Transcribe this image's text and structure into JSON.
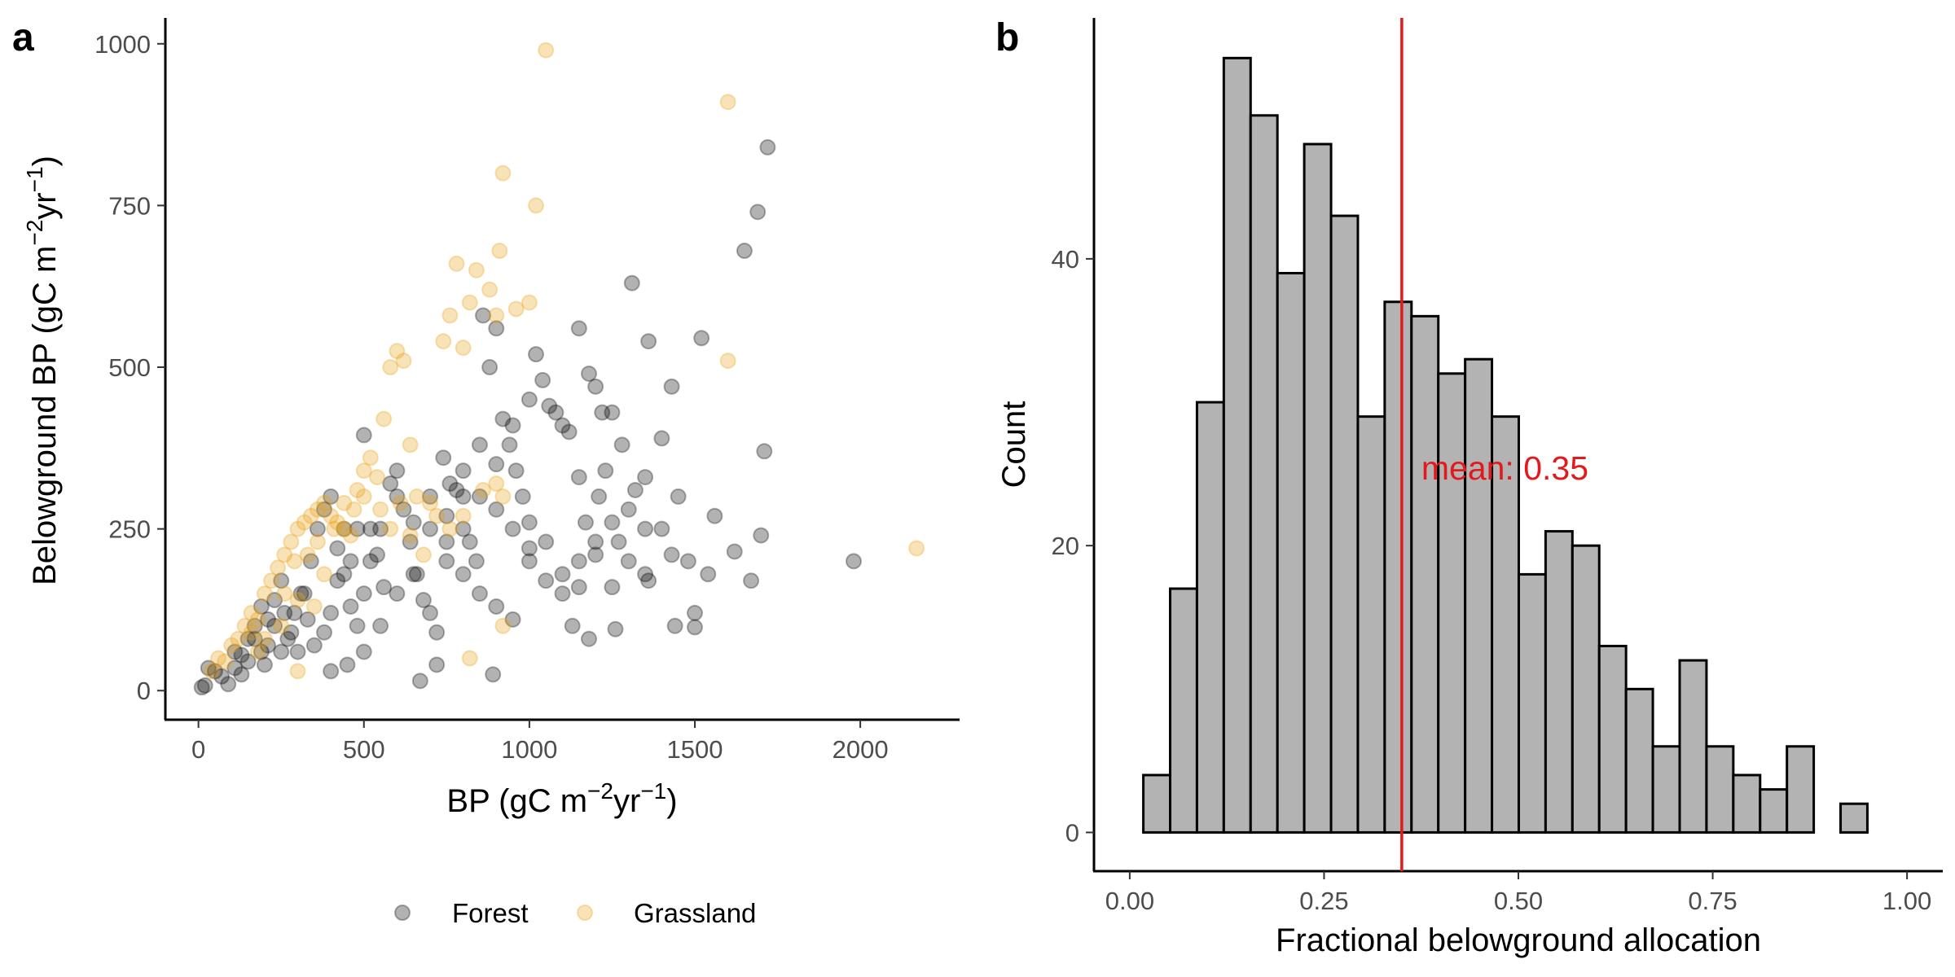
{
  "chart_data": [
    {
      "type": "scatter",
      "panel": "a",
      "xlabel": {
        "main": "BP (gC m",
        "sup1": "−2",
        "mid": "yr",
        "sup2": "−1",
        "end": ")"
      },
      "ylabel": {
        "main": "Belowground BP (gC m",
        "sup1": "−2",
        "mid": "yr",
        "sup2": "−1",
        "end": ")"
      },
      "xlim": [
        -100,
        2300
      ],
      "ylim": [
        -45,
        1040
      ],
      "xticks": [
        0,
        500,
        1000,
        1500,
        2000
      ],
      "yticks": [
        0,
        250,
        500,
        750,
        1000
      ],
      "legend_position": "bottom",
      "series": [
        {
          "name": "Forest",
          "color": "#000000",
          "alpha": 0.3,
          "points": [
            [
              10,
              5
            ],
            [
              20,
              8
            ],
            [
              30,
              35
            ],
            [
              50,
              30
            ],
            [
              70,
              22
            ],
            [
              90,
              10
            ],
            [
              110,
              35
            ],
            [
              130,
              55
            ],
            [
              150,
              80
            ],
            [
              170,
              100
            ],
            [
              190,
              60
            ],
            [
              200,
              40
            ],
            [
              210,
              110
            ],
            [
              230,
              140
            ],
            [
              250,
              170
            ],
            [
              260,
              120
            ],
            [
              280,
              90
            ],
            [
              300,
              60
            ],
            [
              320,
              150
            ],
            [
              340,
              200
            ],
            [
              360,
              250
            ],
            [
              380,
              280
            ],
            [
              400,
              300
            ],
            [
              420,
              220
            ],
            [
              440,
              180
            ],
            [
              460,
              130
            ],
            [
              480,
              100
            ],
            [
              500,
              395
            ],
            [
              520,
              250
            ],
            [
              540,
              210
            ],
            [
              560,
              160
            ],
            [
              580,
              320
            ],
            [
              600,
              340
            ],
            [
              620,
              280
            ],
            [
              640,
              230
            ],
            [
              660,
              180
            ],
            [
              680,
              140
            ],
            [
              700,
              120
            ],
            [
              720,
              90
            ],
            [
              740,
              360
            ],
            [
              760,
              320
            ],
            [
              780,
              310
            ],
            [
              800,
              300
            ],
            [
              820,
              230
            ],
            [
              840,
              200
            ],
            [
              860,
              580
            ],
            [
              880,
              500
            ],
            [
              900,
              560
            ],
            [
              920,
              420
            ],
            [
              940,
              380
            ],
            [
              960,
              340
            ],
            [
              980,
              300
            ],
            [
              1000,
              260
            ],
            [
              1020,
              520
            ],
            [
              1040,
              480
            ],
            [
              1060,
              440
            ],
            [
              1080,
              430
            ],
            [
              1100,
              410
            ],
            [
              1120,
              400
            ],
            [
              1150,
              560
            ],
            [
              1180,
              490
            ],
            [
              1200,
              470
            ],
            [
              1220,
              430
            ],
            [
              1250,
              430
            ],
            [
              1280,
              380
            ],
            [
              1310,
              630
            ],
            [
              1360,
              540
            ],
            [
              1400,
              390
            ],
            [
              1430,
              470
            ],
            [
              1450,
              300
            ],
            [
              1480,
              200
            ],
            [
              1500,
              120
            ],
            [
              1520,
              545
            ],
            [
              1560,
              270
            ],
            [
              1620,
              215
            ],
            [
              1650,
              680
            ],
            [
              1670,
              170
            ],
            [
              1690,
              740
            ],
            [
              1700,
              240
            ],
            [
              1710,
              370
            ],
            [
              1720,
              840
            ],
            [
              1980,
              200
            ],
            [
              890,
              25
            ],
            [
              670,
              15
            ],
            [
              720,
              40
            ],
            [
              1180,
              80
            ],
            [
              1130,
              100
            ],
            [
              1260,
              95
            ],
            [
              1440,
              100
            ],
            [
              1500,
              98
            ],
            [
              1400,
              250
            ],
            [
              1320,
              310
            ],
            [
              600,
              300
            ],
            [
              550,
              250
            ],
            [
              520,
              200
            ],
            [
              500,
              150
            ],
            [
              480,
              250
            ],
            [
              460,
              200
            ],
            [
              440,
              250
            ],
            [
              420,
              170
            ],
            [
              400,
              120
            ],
            [
              380,
              90
            ],
            [
              350,
              70
            ],
            [
              330,
              110
            ],
            [
              310,
              150
            ],
            [
              290,
              120
            ],
            [
              270,
              80
            ],
            [
              250,
              60
            ],
            [
              230,
              100
            ],
            [
              210,
              70
            ],
            [
              190,
              130
            ],
            [
              170,
              80
            ],
            [
              150,
              45
            ],
            [
              130,
              25
            ],
            [
              110,
              60
            ],
            [
              700,
              250
            ],
            [
              750,
              230
            ],
            [
              800,
              180
            ],
            [
              850,
              150
            ],
            [
              900,
              130
            ],
            [
              950,
              110
            ],
            [
              1000,
              220
            ],
            [
              1050,
              230
            ],
            [
              1100,
              180
            ],
            [
              1150,
              160
            ],
            [
              1200,
              230
            ],
            [
              1250,
              260
            ],
            [
              1300,
              280
            ],
            [
              1350,
              330
            ],
            [
              1000,
              450
            ],
            [
              950,
              410
            ],
            [
              900,
              350
            ],
            [
              850,
              300
            ],
            [
              800,
              250
            ],
            [
              750,
              200
            ],
            [
              650,
              180
            ],
            [
              600,
              150
            ],
            [
              550,
              100
            ],
            [
              500,
              60
            ],
            [
              450,
              40
            ],
            [
              400,
              30
            ],
            [
              650,
              260
            ],
            [
              700,
              300
            ],
            [
              750,
              270
            ],
            [
              800,
              340
            ],
            [
              850,
              380
            ],
            [
              900,
              280
            ],
            [
              950,
              250
            ],
            [
              1000,
              200
            ],
            [
              1050,
              170
            ],
            [
              1100,
              150
            ],
            [
              1150,
              200
            ],
            [
              1200,
              210
            ],
            [
              1250,
              160
            ],
            [
              1300,
              200
            ],
            [
              1350,
              180
            ],
            [
              1430,
              210
            ],
            [
              1540,
              180
            ],
            [
              1150,
              330
            ],
            [
              1170,
              260
            ],
            [
              1210,
              300
            ],
            [
              1230,
              340
            ],
            [
              1270,
              230
            ],
            [
              1350,
              250
            ],
            [
              1360,
              170
            ]
          ]
        },
        {
          "name": "Grassland",
          "color": "#e8a317",
          "alpha": 0.3,
          "points": [
            [
              40,
              30
            ],
            [
              60,
              50
            ],
            [
              80,
              45
            ],
            [
              100,
              70
            ],
            [
              120,
              80
            ],
            [
              140,
              100
            ],
            [
              160,
              120
            ],
            [
              180,
              110
            ],
            [
              200,
              150
            ],
            [
              220,
              170
            ],
            [
              240,
              190
            ],
            [
              260,
              210
            ],
            [
              280,
              230
            ],
            [
              300,
              250
            ],
            [
              320,
              260
            ],
            [
              340,
              270
            ],
            [
              360,
              280
            ],
            [
              380,
              290
            ],
            [
              400,
              270
            ],
            [
              420,
              260
            ],
            [
              440,
              250
            ],
            [
              460,
              240
            ],
            [
              480,
              310
            ],
            [
              500,
              340
            ],
            [
              520,
              360
            ],
            [
              540,
              330
            ],
            [
              560,
              420
            ],
            [
              580,
              500
            ],
            [
              600,
              525
            ],
            [
              620,
              510
            ],
            [
              640,
              380
            ],
            [
              660,
              300
            ],
            [
              700,
              290
            ],
            [
              740,
              540
            ],
            [
              760,
              580
            ],
            [
              780,
              660
            ],
            [
              800,
              530
            ],
            [
              820,
              600
            ],
            [
              840,
              650
            ],
            [
              880,
              620
            ],
            [
              900,
              580
            ],
            [
              910,
              680
            ],
            [
              920,
              800
            ],
            [
              960,
              590
            ],
            [
              1000,
              600
            ],
            [
              1020,
              750
            ],
            [
              1050,
              990
            ],
            [
              1600,
              910
            ],
            [
              1600,
              510
            ],
            [
              2170,
              220
            ],
            [
              900,
              320
            ],
            [
              920,
              100
            ],
            [
              820,
              50
            ],
            [
              300,
              30
            ],
            [
              350,
              130
            ],
            [
              380,
              180
            ],
            [
              300,
              140
            ],
            [
              250,
              100
            ],
            [
              200,
              80
            ],
            [
              180,
              60
            ],
            [
              160,
              90
            ],
            [
              260,
              150
            ],
            [
              290,
              200
            ],
            [
              330,
              210
            ],
            [
              360,
              230
            ],
            [
              410,
              250
            ],
            [
              440,
              290
            ],
            [
              470,
              280
            ],
            [
              500,
              300
            ],
            [
              550,
              280
            ],
            [
              580,
              250
            ],
            [
              610,
              290
            ],
            [
              640,
              240
            ],
            [
              680,
              210
            ],
            [
              720,
              270
            ],
            [
              760,
              250
            ],
            [
              800,
              270
            ],
            [
              860,
              310
            ],
            [
              920,
              300
            ]
          ]
        }
      ]
    },
    {
      "type": "histogram",
      "panel": "b",
      "xlabel": "Fractional belowground allocation",
      "ylabel": "Count",
      "xlim": [
        -0.046,
        1.046
      ],
      "ylim": [
        -2.7,
        56.8
      ],
      "xticks": [
        "0.00",
        "0.25",
        "0.50",
        "0.75",
        "1.00"
      ],
      "yticks": [
        0,
        20,
        40
      ],
      "bin_width": 0.0345,
      "bin_start": 0.0175,
      "values": [
        4,
        17,
        30,
        54,
        50,
        39,
        48,
        43,
        29,
        37,
        36,
        32,
        33,
        29,
        18,
        21,
        20,
        13,
        10,
        6,
        12,
        6,
        4,
        3,
        6,
        0,
        2,
        0
      ],
      "fill": "#b3b3b3",
      "mean": 0.35,
      "mean_color": "#e31a1c",
      "mean_label": "mean: 0.35"
    }
  ]
}
